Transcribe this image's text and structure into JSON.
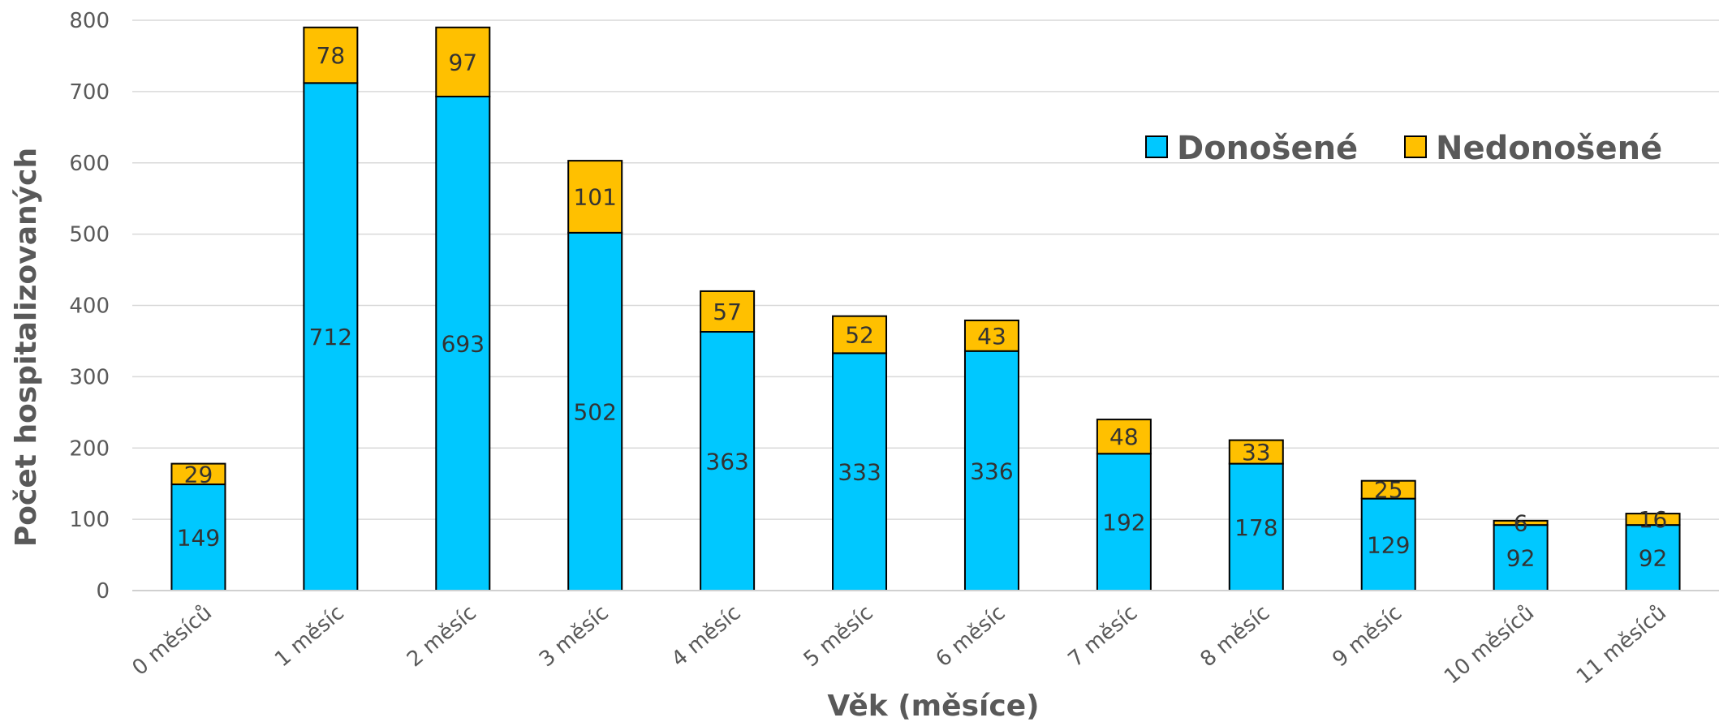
{
  "chart_data": {
    "type": "bar",
    "stacked": true,
    "categories": [
      "0 měsíců",
      "1 měsíc",
      "2 měsíc",
      "3 měsíc",
      "4 měsíc",
      "5 měsíc",
      "6 měsíc",
      "7 měsíc",
      "8 měsíc",
      "9 měsíc",
      "10 měsíců",
      "11 měsíců"
    ],
    "series": [
      {
        "name": "Donošené",
        "color": "#00C8FF",
        "values": [
          149,
          712,
          693,
          502,
          363,
          333,
          336,
          192,
          178,
          129,
          92,
          92
        ]
      },
      {
        "name": "Nedonošené",
        "color": "#FFC000",
        "values": [
          29,
          78,
          97,
          101,
          57,
          52,
          43,
          48,
          33,
          25,
          6,
          16
        ]
      }
    ],
    "xlabel": "Věk (měsíce)",
    "ylabel": "Počet hospitalizovaných",
    "ylim": [
      0,
      800
    ],
    "yticks": [
      0,
      100,
      200,
      300,
      400,
      500,
      600,
      700,
      800
    ],
    "grid": true,
    "legend_position": "top-right"
  }
}
